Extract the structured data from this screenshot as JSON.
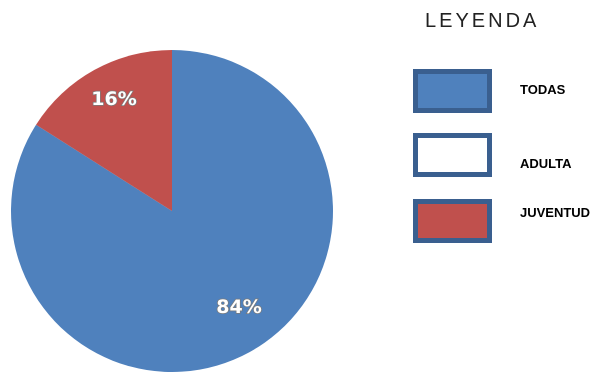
{
  "chart_data": {
    "type": "pie",
    "slices": [
      {
        "label": "84%",
        "value": 84,
        "color": "#4f81bd"
      },
      {
        "label": "16%",
        "value": 16,
        "color": "#c0504d"
      }
    ],
    "legend_placement": "right",
    "legend": {
      "title": "LEYENDA",
      "items": [
        {
          "name": "TODAS",
          "color": "#4f81bd"
        },
        {
          "name": "ADULTA",
          "color": "#ffffff"
        },
        {
          "name": "JUVENTUD",
          "color": "#c0504d"
        }
      ]
    }
  }
}
